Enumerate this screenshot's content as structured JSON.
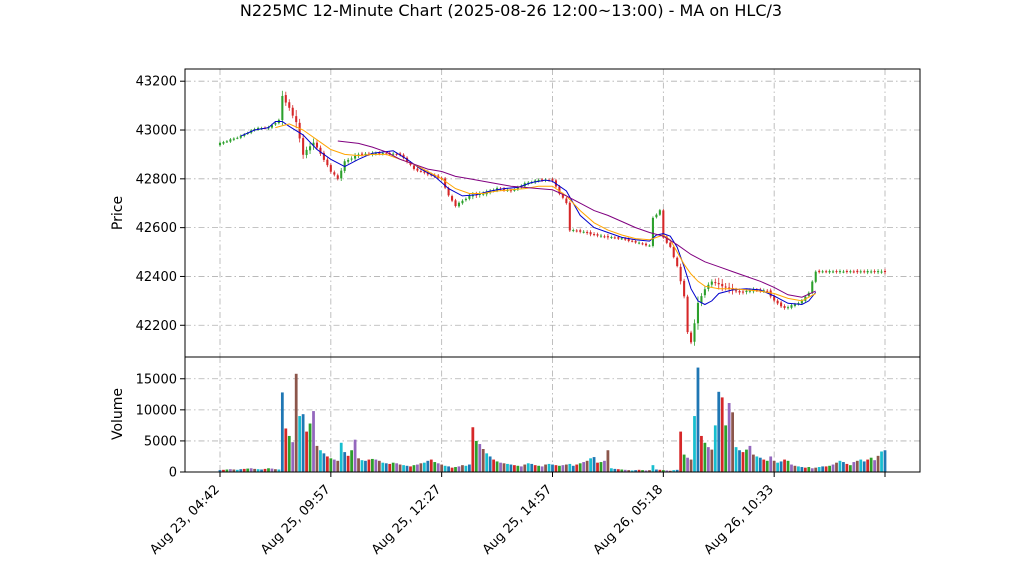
{
  "chart_data": {
    "type": "candlestick",
    "title": "N225MC 12-Minute Chart (2025-08-26 12:00~13:00) - MA on HLC/3",
    "xlabel": "",
    "x_tick_labels": [
      "Aug 23, 04:42",
      "Aug 25, 09:57",
      "Aug 25, 12:27",
      "Aug 25, 14:57",
      "Aug 26, 05:18",
      "Aug 26, 10:33"
    ],
    "price_panel": {
      "ylabel": "Price",
      "ylim": [
        42070,
        43250
      ],
      "yticks": [
        42200,
        42400,
        42600,
        42800,
        43000,
        43200
      ],
      "grid": true,
      "up_color": "#2ca02c",
      "down_color": "#d62728",
      "candle_anchors": [
        [
          0,
          42945
        ],
        [
          6,
          42975
        ],
        [
          10,
          43005
        ],
        [
          14,
          43010
        ],
        [
          17,
          43040
        ],
        [
          18,
          43140
        ],
        [
          20,
          43090
        ],
        [
          22,
          43030
        ],
        [
          24,
          42900
        ],
        [
          27,
          42950
        ],
        [
          30,
          42880
        ],
        [
          32,
          42830
        ],
        [
          34,
          42800
        ],
        [
          36,
          42870
        ],
        [
          40,
          42900
        ],
        [
          46,
          42905
        ],
        [
          52,
          42900
        ],
        [
          56,
          42840
        ],
        [
          60,
          42820
        ],
        [
          64,
          42800
        ],
        [
          66,
          42730
        ],
        [
          68,
          42690
        ],
        [
          72,
          42730
        ],
        [
          76,
          42740
        ],
        [
          80,
          42760
        ],
        [
          84,
          42750
        ],
        [
          88,
          42780
        ],
        [
          92,
          42795
        ],
        [
          96,
          42795
        ],
        [
          98,
          42740
        ],
        [
          100,
          42700
        ],
        [
          101,
          42590
        ],
        [
          104,
          42585
        ],
        [
          110,
          42565
        ],
        [
          116,
          42555
        ],
        [
          120,
          42540
        ],
        [
          124,
          42525
        ],
        [
          125,
          42640
        ],
        [
          127,
          42670
        ],
        [
          128,
          42560
        ],
        [
          130,
          42520
        ],
        [
          132,
          42440
        ],
        [
          134,
          42320
        ],
        [
          135,
          42170
        ],
        [
          136,
          42130
        ],
        [
          138,
          42290
        ],
        [
          140,
          42350
        ],
        [
          142,
          42380
        ],
        [
          146,
          42355
        ],
        [
          150,
          42335
        ],
        [
          154,
          42345
        ],
        [
          158,
          42340
        ],
        [
          160,
          42300
        ],
        [
          163,
          42270
        ],
        [
          166,
          42285
        ],
        [
          168,
          42300
        ],
        [
          170,
          42335
        ],
        [
          172,
          42420
        ]
      ],
      "ma_lines": [
        {
          "color": "#0000cc",
          "start": 6,
          "points": [
            [
              6,
              42975
            ],
            [
              10,
              43000
            ],
            [
              14,
              43010
            ],
            [
              16,
              43035
            ],
            [
              18,
              43035
            ],
            [
              20,
              43015
            ],
            [
              24,
              42980
            ],
            [
              28,
              42920
            ],
            [
              32,
              42880
            ],
            [
              36,
              42850
            ],
            [
              40,
              42880
            ],
            [
              44,
              42905
            ],
            [
              50,
              42915
            ],
            [
              54,
              42880
            ],
            [
              58,
              42840
            ],
            [
              62,
              42810
            ],
            [
              66,
              42760
            ],
            [
              70,
              42730
            ],
            [
              74,
              42735
            ],
            [
              78,
              42750
            ],
            [
              82,
              42760
            ],
            [
              86,
              42765
            ],
            [
              90,
              42785
            ],
            [
              94,
              42795
            ],
            [
              96,
              42790
            ],
            [
              100,
              42750
            ],
            [
              104,
              42650
            ],
            [
              108,
              42600
            ],
            [
              112,
              42580
            ],
            [
              116,
              42560
            ],
            [
              120,
              42550
            ],
            [
              124,
              42545
            ],
            [
              126,
              42570
            ],
            [
              128,
              42575
            ],
            [
              130,
              42565
            ],
            [
              132,
              42520
            ],
            [
              134,
              42440
            ],
            [
              136,
              42350
            ],
            [
              138,
              42300
            ],
            [
              140,
              42285
            ],
            [
              142,
              42300
            ],
            [
              144,
              42330
            ],
            [
              148,
              42345
            ],
            [
              152,
              42350
            ],
            [
              156,
              42345
            ],
            [
              160,
              42320
            ],
            [
              164,
              42290
            ],
            [
              168,
              42285
            ],
            [
              170,
              42300
            ],
            [
              172,
              42335
            ]
          ]
        },
        {
          "color": "#ffa500",
          "start": 16,
          "points": [
            [
              16,
              43010
            ],
            [
              20,
              43025
            ],
            [
              24,
              43000
            ],
            [
              28,
              42960
            ],
            [
              32,
              42920
            ],
            [
              36,
              42900
            ],
            [
              40,
              42895
            ],
            [
              44,
              42900
            ],
            [
              48,
              42900
            ],
            [
              52,
              42880
            ],
            [
              56,
              42860
            ],
            [
              60,
              42830
            ],
            [
              64,
              42800
            ],
            [
              68,
              42760
            ],
            [
              72,
              42740
            ],
            [
              76,
              42740
            ],
            [
              80,
              42750
            ],
            [
              84,
              42755
            ],
            [
              88,
              42760
            ],
            [
              92,
              42770
            ],
            [
              96,
              42770
            ],
            [
              100,
              42730
            ],
            [
              104,
              42670
            ],
            [
              108,
              42620
            ],
            [
              112,
              42590
            ],
            [
              116,
              42570
            ],
            [
              120,
              42555
            ],
            [
              124,
              42550
            ],
            [
              126,
              42560
            ],
            [
              128,
              42570
            ],
            [
              130,
              42550
            ],
            [
              132,
              42500
            ],
            [
              134,
              42450
            ],
            [
              136,
              42410
            ],
            [
              138,
              42380
            ],
            [
              140,
              42360
            ],
            [
              144,
              42350
            ],
            [
              148,
              42350
            ],
            [
              152,
              42345
            ],
            [
              156,
              42340
            ],
            [
              160,
              42330
            ],
            [
              164,
              42310
            ],
            [
              168,
              42300
            ],
            [
              172,
              42330
            ]
          ]
        },
        {
          "color": "#800080",
          "start": 34,
          "points": [
            [
              34,
              42955
            ],
            [
              40,
              42945
            ],
            [
              44,
              42930
            ],
            [
              48,
              42910
            ],
            [
              52,
              42880
            ],
            [
              56,
              42860
            ],
            [
              60,
              42840
            ],
            [
              64,
              42830
            ],
            [
              68,
              42810
            ],
            [
              72,
              42800
            ],
            [
              76,
              42790
            ],
            [
              80,
              42780
            ],
            [
              84,
              42770
            ],
            [
              88,
              42765
            ],
            [
              92,
              42760
            ],
            [
              96,
              42755
            ],
            [
              100,
              42730
            ],
            [
              104,
              42700
            ],
            [
              108,
              42670
            ],
            [
              112,
              42650
            ],
            [
              116,
              42625
            ],
            [
              120,
              42600
            ],
            [
              124,
              42580
            ],
            [
              128,
              42565
            ],
            [
              132,
              42530
            ],
            [
              136,
              42490
            ],
            [
              140,
              42460
            ],
            [
              144,
              42440
            ],
            [
              148,
              42420
            ],
            [
              152,
              42400
            ],
            [
              156,
              42380
            ],
            [
              160,
              42355
            ],
            [
              164,
              42325
            ],
            [
              168,
              42315
            ],
            [
              172,
              42340
            ]
          ]
        }
      ]
    },
    "volume_panel": {
      "ylabel": "Volume",
      "ylim": [
        0,
        18500
      ],
      "yticks": [
        0,
        5000,
        10000,
        15000
      ],
      "grid": true,
      "colors": [
        "#1f77b4",
        "#d62728",
        "#2ca02c",
        "#9467bd",
        "#8c564b",
        "#17becf"
      ],
      "volumes": [
        300,
        350,
        400,
        450,
        400,
        350,
        450,
        500,
        550,
        600,
        500,
        450,
        400,
        500,
        600,
        550,
        450,
        400,
        12800,
        7000,
        5800,
        4800,
        15800,
        9000,
        9300,
        6500,
        7800,
        9800,
        4200,
        3500,
        3000,
        2500,
        2200,
        2000,
        1800,
        4700,
        3200,
        2600,
        3500,
        5200,
        2200,
        1900,
        1800,
        2000,
        2100,
        2000,
        1800,
        1500,
        1400,
        1300,
        1500,
        1400,
        1200,
        1100,
        1000,
        900,
        1100,
        1200,
        1400,
        1500,
        1800,
        2000,
        1600,
        1400,
        1200,
        1000,
        900,
        700,
        800,
        900,
        1100,
        1000,
        1200,
        7200,
        5000,
        4500,
        3700,
        3000,
        2500,
        2000,
        1700,
        1500,
        1400,
        1300,
        1200,
        1100,
        1000,
        900,
        1200,
        1400,
        1300,
        1100,
        1000,
        900,
        1200,
        1300,
        1200,
        1100,
        1000,
        1100,
        1200,
        1300,
        1000,
        1200,
        1400,
        1600,
        1800,
        2200,
        2400,
        1500,
        1600,
        1800,
        3500,
        600,
        500,
        450,
        400,
        350,
        300,
        250,
        300,
        350,
        300,
        250,
        300,
        1100,
        400,
        350,
        300,
        250,
        200,
        300,
        350,
        6500,
        2800,
        2300,
        2000,
        9000,
        16800,
        5800,
        4700,
        4000,
        3600,
        7500,
        12900,
        12000,
        7500,
        11100,
        9600,
        4000,
        3500,
        3200,
        3600,
        4200,
        2800,
        2500,
        2300,
        2000,
        1800,
        2500,
        1800,
        1500,
        1700,
        2000,
        1800,
        1200,
        1000,
        900,
        800,
        700,
        800,
        600,
        700,
        800,
        900,
        900,
        1000,
        1200,
        1500,
        1800,
        1600,
        1300,
        1100,
        1600,
        1800,
        2000,
        1700,
        2000,
        2300,
        1900,
        2600,
        3300,
        3500
      ]
    }
  }
}
